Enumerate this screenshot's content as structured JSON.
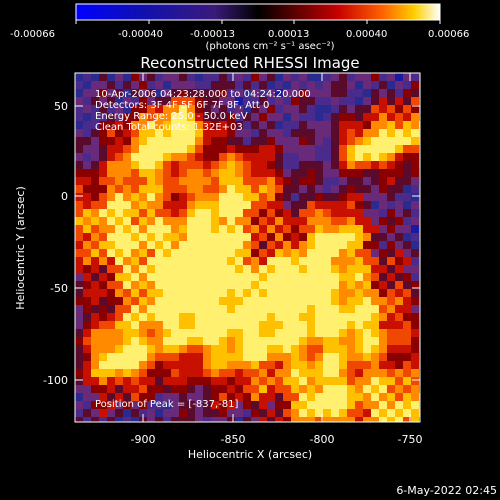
{
  "colorbar": {
    "ticks": [
      "-0.00066",
      "-0.00040",
      "-0.00013",
      "0.00013",
      "0.00040",
      "0.00066"
    ],
    "units": "(photons cm⁻² s⁻¹ asec⁻²)"
  },
  "image": {
    "title": "Reconstructed RHESSI Image",
    "info_lines": [
      "10-Apr-2006 04:23:28.000 to 04:24:20.000",
      "Detectors: 3F 4F 5F 6F 7F 8F, Att 0",
      "Energy Range: 25.0 - 50.0 keV",
      "Clean     Total counts: 1.32E+03"
    ],
    "peak_label": "Position of Peak = [-837,-81]"
  },
  "axes": {
    "xlabel": "Heliocentric X (arcsec)",
    "ylabel": "Heliocentric Y (arcsec)",
    "xticks": [
      "-900",
      "-850",
      "-800",
      "-750"
    ],
    "yticks": [
      "50",
      "0",
      "-50",
      "-100"
    ]
  },
  "footer": {
    "date": "6-May-2022 02:45"
  },
  "colors": {
    "background": "#000000",
    "text": "#ffffff"
  }
}
